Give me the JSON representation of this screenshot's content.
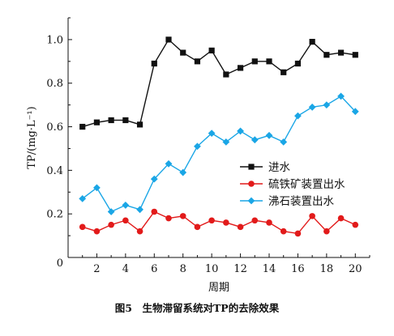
{
  "chart_data": {
    "type": "line",
    "caption": "图5　生物滞留系统对TP的去除效果",
    "xlabel": "周期",
    "ylabel": "TP/(mg·L⁻¹)",
    "x": [
      1,
      2,
      3,
      4,
      5,
      6,
      7,
      8,
      9,
      10,
      11,
      12,
      13,
      14,
      15,
      16,
      17,
      18,
      19,
      20
    ],
    "xlim": [
      0,
      21
    ],
    "ylim": [
      0,
      1.1
    ],
    "xticks": [
      2,
      4,
      6,
      8,
      10,
      12,
      14,
      16,
      18,
      20
    ],
    "yticks": [
      0.2,
      0.4,
      0.6,
      0.8,
      1.0
    ],
    "xtick_labels": [
      "2",
      "4",
      "6",
      "8",
      "10",
      "12",
      "14",
      "16",
      "18",
      "20"
    ],
    "ytick_labels": [
      "0.2",
      "0.4",
      "0.6",
      "0.8",
      "1.0"
    ],
    "origin_label": "0",
    "grid": false,
    "legend_position": "center-right",
    "series": [
      {
        "name": "进水",
        "color": "#111111",
        "marker": "square",
        "values": [
          0.6,
          0.62,
          0.63,
          0.63,
          0.61,
          0.89,
          1.0,
          0.94,
          0.9,
          0.95,
          0.84,
          0.87,
          0.9,
          0.9,
          0.85,
          0.89,
          0.99,
          0.93,
          0.94,
          0.93
        ]
      },
      {
        "name": "硫铁矿装置出水",
        "color": "#e21a1a",
        "marker": "circle",
        "values": [
          0.14,
          0.12,
          0.15,
          0.17,
          0.12,
          0.21,
          0.18,
          0.19,
          0.14,
          0.17,
          0.16,
          0.14,
          0.17,
          0.16,
          0.12,
          0.11,
          0.19,
          0.12,
          0.18,
          0.15
        ]
      },
      {
        "name": "沸石装置出水",
        "color": "#1aa6e6",
        "marker": "diamond",
        "values": [
          0.27,
          0.32,
          0.21,
          0.24,
          0.22,
          0.36,
          0.43,
          0.39,
          0.51,
          0.57,
          0.53,
          0.58,
          0.54,
          0.56,
          0.53,
          0.65,
          0.69,
          0.7,
          0.74,
          0.67
        ]
      }
    ]
  }
}
